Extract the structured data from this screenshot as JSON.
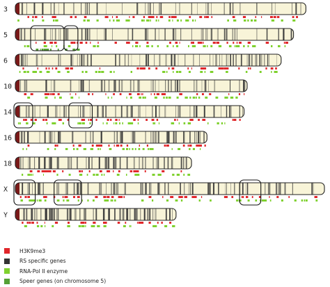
{
  "colors": {
    "background": "#ffffff",
    "chromosome_body": "#f8f4d8",
    "chromosome_outline": "#222222",
    "centromere": "#7a1a1a",
    "band": "#3a3a3a",
    "h3k9me3": "#e0262a",
    "rs_specific_genes": "#333333",
    "rna_pol_ii": "#7fd12e",
    "speer_genes": "#55a035"
  },
  "chromosomes": [
    {
      "label": "3",
      "length_fraction": 0.94,
      "band_density": "low",
      "tracks": [
        "h3k9me3",
        "rna_pol_ii"
      ],
      "highlights": []
    },
    {
      "label": "5",
      "length_fraction": 0.9,
      "band_density": "medium",
      "tracks": [
        "h3k9me3",
        "rna_pol_ii",
        "speer_genes"
      ],
      "highlights": [
        {
          "start": 0.06,
          "end": 0.17
        },
        {
          "start": 0.18,
          "end": 0.22
        }
      ]
    },
    {
      "label": "6",
      "length_fraction": 0.86,
      "band_density": "medium",
      "tracks": [
        "h3k9me3",
        "rna_pol_ii"
      ],
      "highlights": []
    },
    {
      "label": "10",
      "length_fraction": 0.75,
      "band_density": "medium",
      "tracks": [
        "h3k9me3",
        "rna_pol_ii"
      ],
      "highlights": []
    },
    {
      "label": "14",
      "length_fraction": 0.74,
      "band_density": "medium",
      "tracks": [
        "h3k9me3",
        "rna_pol_ii"
      ],
      "highlights": [
        {
          "start": 0.0,
          "end": 0.07
        },
        {
          "start": 0.24,
          "end": 0.33
        }
      ]
    },
    {
      "label": "16",
      "length_fraction": 0.62,
      "band_density": "high",
      "tracks": [
        "h3k9me3",
        "rna_pol_ii"
      ],
      "highlights": []
    },
    {
      "label": "18",
      "length_fraction": 0.57,
      "band_density": "high",
      "tracks": [
        "h3k9me3",
        "rna_pol_ii"
      ],
      "highlights": []
    },
    {
      "label": "X",
      "length_fraction": 1.0,
      "band_density": "medium",
      "tracks": [
        "h3k9me3",
        "rna_pol_ii"
      ],
      "highlights": [
        {
          "start": 0.0,
          "end": 0.06
        },
        {
          "start": 0.13,
          "end": 0.21
        },
        {
          "start": 0.73,
          "end": 0.79
        }
      ]
    },
    {
      "label": "Y",
      "length_fraction": 0.52,
      "band_density": "very-high",
      "tracks": [
        "h3k9me3",
        "rna_pol_ii"
      ],
      "highlights": []
    }
  ],
  "legend": [
    {
      "label": "H3K9me3",
      "color": "#e0262a"
    },
    {
      "label": "RS specific genes",
      "color": "#333333"
    },
    {
      "label": "RNA-Pol II enzyme",
      "color": "#7fd12e"
    },
    {
      "label": "Speer genes (on chromosome 5)",
      "color": "#55a035"
    }
  ]
}
